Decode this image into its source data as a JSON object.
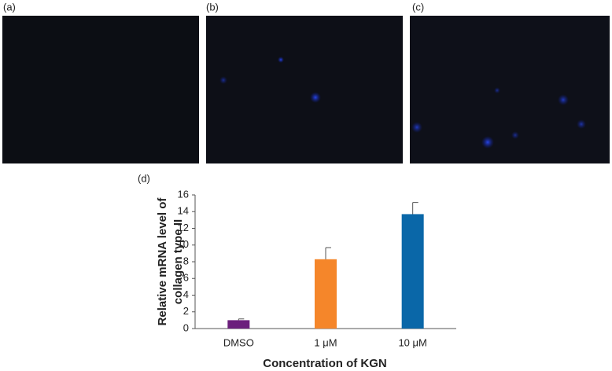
{
  "panel_labels": [
    "(a)",
    "(b)",
    "(c)",
    "(d)"
  ],
  "chart_data": {
    "type": "bar",
    "y_label_lines": [
      "Relative  mRNA level of",
      "collagen type II"
    ],
    "x_label": "Concentration of KGN",
    "categories": [
      "DMSO",
      "1 μM",
      "10 μM"
    ],
    "values": [
      1.0,
      8.3,
      13.7
    ],
    "errors": [
      0.15,
      1.4,
      1.4
    ],
    "colors": [
      "#6b1f7c",
      "#f5862a",
      "#0a67a8"
    ],
    "ylim": [
      0,
      16
    ],
    "yticks": [
      0,
      2,
      4,
      6,
      8,
      10,
      12,
      14,
      16
    ],
    "grid": false
  }
}
